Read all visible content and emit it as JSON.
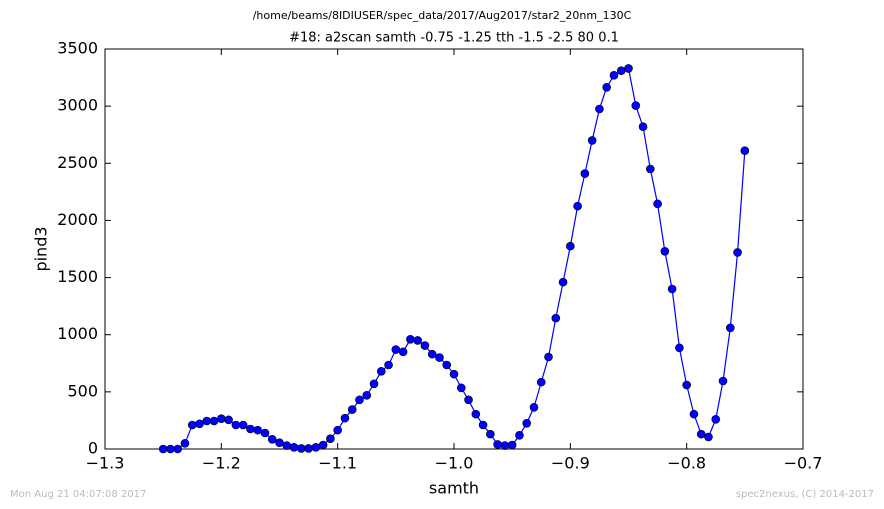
{
  "chart_data": {
    "type": "line",
    "title": "/home/beams/8IDIUSER/spec_data/2017/Aug2017/star2_20nm_130C",
    "subtitle": "#18: a2scan  samth -0.75 -1.25  tth -1.5 -2.5  80 0.1",
    "xlabel": "samth",
    "ylabel": "pind3",
    "color": "#0000ff",
    "x": [
      -1.25,
      -1.24375,
      -1.2375,
      -1.23125,
      -1.225,
      -1.21875,
      -1.2125,
      -1.20625,
      -1.2,
      -1.19375,
      -1.1875,
      -1.18125,
      -1.175,
      -1.16875,
      -1.1625,
      -1.15625,
      -1.15,
      -1.14375,
      -1.1375,
      -1.13125,
      -1.125,
      -1.11875,
      -1.1125,
      -1.10625,
      -1.1,
      -1.09375,
      -1.0875,
      -1.08125,
      -1.075,
      -1.06875,
      -1.0625,
      -1.05625,
      -1.05,
      -1.04375,
      -1.0375,
      -1.03125,
      -1.025,
      -1.01875,
      -1.0125,
      -1.00625,
      -1.0,
      -0.99375,
      -0.9875,
      -0.98125,
      -0.975,
      -0.96875,
      -0.9625,
      -0.95625,
      -0.95,
      -0.94375,
      -0.9375,
      -0.93125,
      -0.925,
      -0.91875,
      -0.9125,
      -0.90625,
      -0.9,
      -0.89375,
      -0.8875,
      -0.88125,
      -0.875,
      -0.86875,
      -0.8625,
      -0.85625,
      -0.85,
      -0.84375,
      -0.8375,
      -0.83125,
      -0.825,
      -0.81875,
      -0.8125,
      -0.80625,
      -0.8,
      -0.79375,
      -0.7875,
      -0.78125,
      -0.775,
      -0.76875,
      -0.7625,
      -0.75625,
      -0.75
    ],
    "values": [
      0,
      0,
      0,
      50,
      210,
      220,
      245,
      245,
      265,
      255,
      210,
      210,
      175,
      165,
      140,
      85,
      55,
      30,
      15,
      5,
      5,
      15,
      35,
      90,
      165,
      270,
      345,
      430,
      470,
      570,
      680,
      735,
      870,
      850,
      960,
      950,
      905,
      830,
      800,
      735,
      655,
      535,
      430,
      305,
      210,
      130,
      40,
      30,
      35,
      120,
      225,
      365,
      585,
      805,
      1145,
      1460,
      1775,
      2125,
      2410,
      2700,
      2975,
      3165,
      3270,
      3310,
      3330,
      3005,
      2820,
      2450,
      2145,
      1730,
      1400,
      885,
      560,
      305,
      130,
      105,
      260,
      595,
      1060,
      1720,
      2610
    ],
    "xlim": [
      -1.3,
      -0.7
    ],
    "xticks": [
      {
        "value": -1.3,
        "label": "−1.3"
      },
      {
        "value": -1.2,
        "label": "−1.2"
      },
      {
        "value": -1.1,
        "label": "−1.1"
      },
      {
        "value": -1.0,
        "label": "−1.0"
      },
      {
        "value": -0.9,
        "label": "−0.9"
      },
      {
        "value": -0.8,
        "label": "−0.8"
      },
      {
        "value": -0.7,
        "label": "−0.7"
      }
    ],
    "ylim": [
      0,
      3500
    ],
    "yticks": [
      0,
      500,
      1000,
      1500,
      2000,
      2500,
      3000,
      3500
    ],
    "grid": false
  },
  "footer": {
    "left": "Mon Aug 21 04:07:08 2017",
    "right": "spec2nexus, (C) 2014-2017"
  }
}
